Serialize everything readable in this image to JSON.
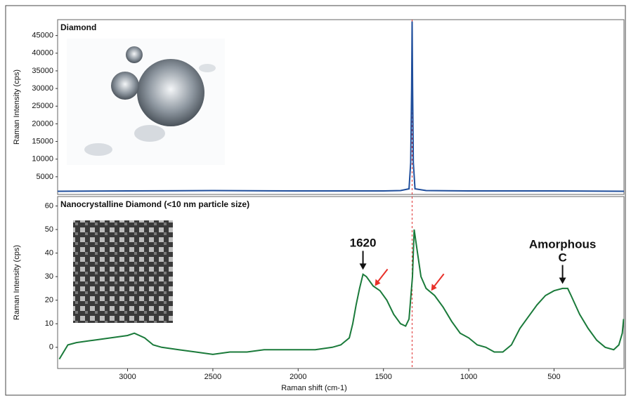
{
  "chart_data": [
    {
      "type": "line",
      "title": "Diamond",
      "y_label": "Raman Intensity (cps)",
      "xlim": [
        3410,
        90
      ],
      "ylim": [
        0,
        49500
      ],
      "yticks": [
        5000,
        10000,
        15000,
        20000,
        25000,
        30000,
        35000,
        40000,
        45000
      ],
      "x": [
        3410,
        3000,
        2500,
        2000,
        1500,
        1400,
        1350,
        1340,
        1335,
        1332,
        1329,
        1325,
        1315,
        1250,
        1000,
        500,
        90
      ],
      "series": [
        {
          "name": "Diamond",
          "color": "#1f4e9c",
          "values": [
            900,
            1000,
            1100,
            1000,
            1000,
            1100,
            1600,
            9000,
            30000,
            49000,
            30000,
            9000,
            1600,
            1100,
            1000,
            1000,
            900
          ]
        }
      ],
      "vline": {
        "x": 1332,
        "color": "#e03030"
      }
    },
    {
      "type": "line",
      "title": "Nanocrystalline Diamond (<10 nm particle size)",
      "y_label": "Raman Intensity (cps)",
      "x_label": "Raman shift (cm-1)",
      "xlim": [
        3410,
        90
      ],
      "ylim": [
        -9,
        64
      ],
      "xticks": [
        3000,
        2500,
        2000,
        1500,
        1000,
        500
      ],
      "yticks": [
        0,
        10,
        20,
        30,
        40,
        50,
        60
      ],
      "x": [
        3400,
        3350,
        3300,
        3200,
        3100,
        3000,
        2960,
        2900,
        2850,
        2800,
        2700,
        2600,
        2500,
        2400,
        2300,
        2200,
        2100,
        2000,
        1900,
        1800,
        1750,
        1700,
        1680,
        1660,
        1640,
        1620,
        1600,
        1560,
        1520,
        1480,
        1440,
        1400,
        1370,
        1350,
        1330,
        1320,
        1300,
        1280,
        1250,
        1200,
        1150,
        1100,
        1050,
        1000,
        950,
        900,
        850,
        800,
        750,
        700,
        650,
        600,
        550,
        500,
        450,
        420,
        400,
        350,
        300,
        250,
        200,
        150,
        120,
        100,
        92
      ],
      "series": [
        {
          "name": "Nanocrystalline Diamond",
          "color": "#1a7a3a",
          "values": [
            -5,
            1,
            2,
            3,
            4,
            5,
            6,
            4,
            1,
            0,
            -1,
            -2,
            -3,
            -2,
            -2,
            -1,
            -1,
            -1,
            -1,
            0,
            1,
            4,
            10,
            18,
            25,
            31,
            30,
            26,
            24,
            20,
            14,
            10,
            9,
            12,
            30,
            50,
            40,
            30,
            25,
            22,
            17,
            11,
            6,
            4,
            1,
            0,
            -2,
            -2,
            1,
            8,
            13,
            18,
            22,
            24,
            25,
            25,
            22,
            14,
            8,
            3,
            0,
            -1,
            1,
            6,
            12
          ]
        }
      ],
      "vline": {
        "x": 1332,
        "color": "#e03030"
      },
      "annotations": [
        {
          "text": "1620",
          "x": 1620,
          "y": 32
        },
        {
          "text": "Amorphous\nC",
          "x": 450,
          "y": 26
        }
      ],
      "arrows": [
        {
          "x": 1550,
          "y": 26,
          "color": "#e8312a"
        },
        {
          "x": 1220,
          "y": 24,
          "color": "#e8312a"
        }
      ]
    }
  ]
}
